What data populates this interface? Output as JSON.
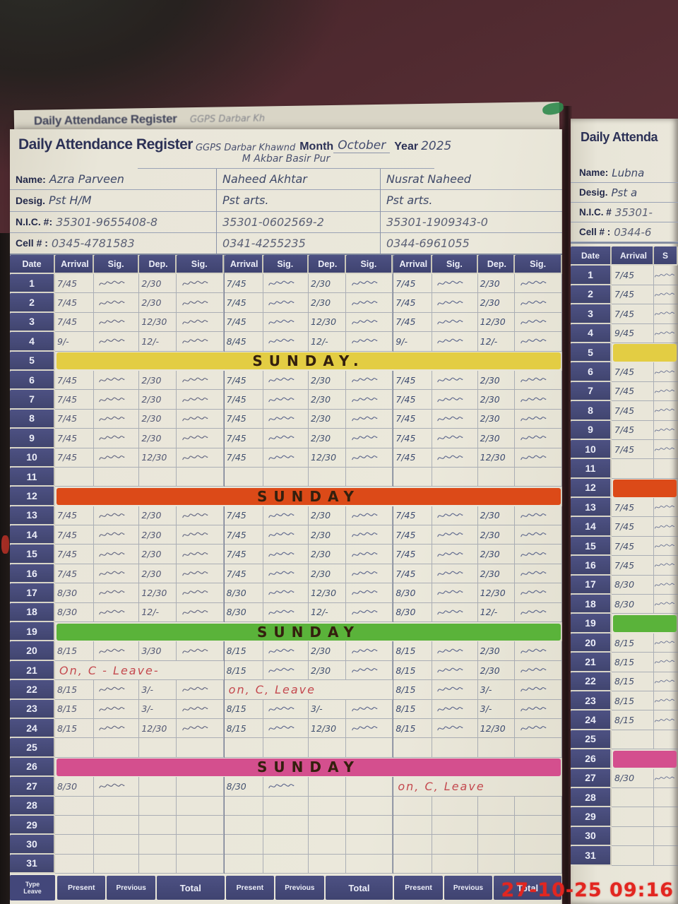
{
  "prev_page": {
    "title": "Daily Attendance Register",
    "handwriting": "GGPS Darbar Kh"
  },
  "page": {
    "title": "Daily Attendance Register",
    "school_line1": "GGPS Darbar Khawnd",
    "school_line2": "M Akbar Basir Pur",
    "month_label": "Month",
    "month_value": "October",
    "year_label": "Year",
    "year_value": "2025",
    "info_labels": {
      "name": "Name:",
      "desig": "Desig.",
      "nic": "N.I.C. #:",
      "cell": "Cell # :"
    },
    "teachers": [
      {
        "name": "Azra Parveen",
        "desig": "Pst  H/M",
        "nic": "35301-9655408-8",
        "cell": "0345-4781583"
      },
      {
        "name": "Naheed Akhtar",
        "desig": "Pst  arts.",
        "nic": "35301-0602569-2",
        "cell": "0341-4255235"
      },
      {
        "name": "Nusrat Naheed",
        "desig": "Pst  arts.",
        "nic": "35301-1909343-0",
        "cell": "0344-6961055"
      }
    ],
    "table_headers": {
      "date": "Date",
      "arrival": "Arrival",
      "sig": "Sig.",
      "dep": "Dep."
    },
    "footer": {
      "type_line1": "Type",
      "type_line2": "Leave",
      "present": "Present",
      "previous": "Previous",
      "total": "Total"
    },
    "sunday_colors": {
      "yellow": "#e3cd43",
      "red": "#dc4a18",
      "green": "#5ab33a",
      "pink": "#d44f8e"
    },
    "rows": [
      {
        "d": 1,
        "t": [
          [
            "7/45",
            "2/30"
          ],
          [
            "7/45",
            "2/30"
          ],
          [
            "7/45",
            "2/30"
          ]
        ]
      },
      {
        "d": 2,
        "t": [
          [
            "7/45",
            "2/30"
          ],
          [
            "7/45",
            "2/30"
          ],
          [
            "7/45",
            "2/30"
          ]
        ]
      },
      {
        "d": 3,
        "t": [
          [
            "7/45",
            "12/30"
          ],
          [
            "7/45",
            "12/30"
          ],
          [
            "7/45",
            "12/30"
          ]
        ]
      },
      {
        "d": 4,
        "t": [
          [
            "9/-",
            "12/-"
          ],
          [
            "8/45",
            "12/-"
          ],
          [
            "9/-",
            "12/-"
          ]
        ]
      },
      {
        "d": 5,
        "sunday": "yellow",
        "label": "SUNDAY."
      },
      {
        "d": 6,
        "t": [
          [
            "7/45",
            "2/30"
          ],
          [
            "7/45",
            "2/30"
          ],
          [
            "7/45",
            "2/30"
          ]
        ]
      },
      {
        "d": 7,
        "t": [
          [
            "7/45",
            "2/30"
          ],
          [
            "7/45",
            "2/30"
          ],
          [
            "7/45",
            "2/30"
          ]
        ]
      },
      {
        "d": 8,
        "t": [
          [
            "7/45",
            "2/30"
          ],
          [
            "7/45",
            "2/30"
          ],
          [
            "7/45",
            "2/30"
          ]
        ]
      },
      {
        "d": 9,
        "t": [
          [
            "7/45",
            "2/30"
          ],
          [
            "7/45",
            "2/30"
          ],
          [
            "7/45",
            "2/30"
          ]
        ]
      },
      {
        "d": 10,
        "t": [
          [
            "7/45",
            "12/30"
          ],
          [
            "7/45",
            "12/30"
          ],
          [
            "7/45",
            "12/30"
          ]
        ]
      },
      {
        "d": 11
      },
      {
        "d": 12,
        "sunday": "red",
        "label": "SUNDAY"
      },
      {
        "d": 13,
        "t": [
          [
            "7/45",
            "2/30"
          ],
          [
            "7/45",
            "2/30"
          ],
          [
            "7/45",
            "2/30"
          ]
        ]
      },
      {
        "d": 14,
        "t": [
          [
            "7/45",
            "2/30"
          ],
          [
            "7/45",
            "2/30"
          ],
          [
            "7/45",
            "2/30"
          ]
        ]
      },
      {
        "d": 15,
        "t": [
          [
            "7/45",
            "2/30"
          ],
          [
            "7/45",
            "2/30"
          ],
          [
            "7/45",
            "2/30"
          ]
        ]
      },
      {
        "d": 16,
        "t": [
          [
            "7/45",
            "2/30"
          ],
          [
            "7/45",
            "2/30"
          ],
          [
            "7/45",
            "2/30"
          ]
        ]
      },
      {
        "d": 17,
        "t": [
          [
            "8/30",
            "12/30"
          ],
          [
            "8/30",
            "12/30"
          ],
          [
            "8/30",
            "12/30"
          ]
        ]
      },
      {
        "d": 18,
        "t": [
          [
            "8/30",
            "12/-"
          ],
          [
            "8/30",
            "12/-"
          ],
          [
            "8/30",
            "12/-"
          ]
        ]
      },
      {
        "d": 19,
        "sunday": "green",
        "label": "SUNDAY"
      },
      {
        "d": 20,
        "t": [
          [
            "8/15",
            "3/30"
          ],
          [
            "8/15",
            "2/30"
          ],
          [
            "8/15",
            "2/30"
          ]
        ]
      },
      {
        "d": 21,
        "t": [
          {
            "leave": "On, C - Leave-"
          },
          [
            "8/15",
            "2/30"
          ],
          [
            "8/15",
            "2/30"
          ]
        ]
      },
      {
        "d": 22,
        "t": [
          [
            "8/15",
            "3/-"
          ],
          {
            "leave": "on, C, Leave"
          },
          [
            "8/15",
            "3/-"
          ]
        ]
      },
      {
        "d": 23,
        "t": [
          [
            "8/15",
            "3/-"
          ],
          [
            "8/15",
            "3/-"
          ],
          [
            "8/15",
            "3/-"
          ]
        ]
      },
      {
        "d": 24,
        "t": [
          [
            "8/15",
            "12/30"
          ],
          [
            "8/15",
            "12/30"
          ],
          [
            "8/15",
            "12/30"
          ]
        ]
      },
      {
        "d": 25
      },
      {
        "d": 26,
        "sunday": "pink",
        "label": "SUNDAY"
      },
      {
        "d": 27,
        "t": [
          [
            "8/30",
            ""
          ],
          [
            "8/30",
            ""
          ],
          {
            "leave": "on, C, Leave"
          }
        ]
      },
      {
        "d": 28
      },
      {
        "d": 29
      },
      {
        "d": 30
      },
      {
        "d": 31
      }
    ]
  },
  "right_page": {
    "title": "Daily Attenda",
    "info_labels": {
      "name": "Name:",
      "desig": "Desig.",
      "nic": "N.I.C. #",
      "cell": "Cell # :"
    },
    "teacher": {
      "name": "Lubna",
      "desig": "Pst  a",
      "nic": "35301-",
      "cell": "0344-6"
    },
    "table_headers": {
      "date": "Date",
      "arrival": "Arrival",
      "sig": "S"
    },
    "rows": [
      {
        "d": 1,
        "a": "7/45"
      },
      {
        "d": 2,
        "a": "7/45"
      },
      {
        "d": 3,
        "a": "7/45"
      },
      {
        "d": 4,
        "a": "9/45"
      },
      {
        "d": 5,
        "sunday": "yellow"
      },
      {
        "d": 6,
        "a": "7/45"
      },
      {
        "d": 7,
        "a": "7/45"
      },
      {
        "d": 8,
        "a": "7/45"
      },
      {
        "d": 9,
        "a": "7/45"
      },
      {
        "d": 10,
        "a": "7/45"
      },
      {
        "d": 11
      },
      {
        "d": 12,
        "sunday": "red"
      },
      {
        "d": 13,
        "a": "7/45"
      },
      {
        "d": 14,
        "a": "7/45"
      },
      {
        "d": 15,
        "a": "7/45"
      },
      {
        "d": 16,
        "a": "7/45"
      },
      {
        "d": 17,
        "a": "8/30"
      },
      {
        "d": 18,
        "a": "8/30"
      },
      {
        "d": 19,
        "sunday": "green"
      },
      {
        "d": 20,
        "a": "8/15"
      },
      {
        "d": 21,
        "a": "8/15"
      },
      {
        "d": 22,
        "a": "8/15"
      },
      {
        "d": 23,
        "a": "8/15"
      },
      {
        "d": 24,
        "a": "8/15"
      },
      {
        "d": 25
      },
      {
        "d": 26,
        "sunday": "pink"
      },
      {
        "d": 27,
        "a": "8/30"
      },
      {
        "d": 28
      },
      {
        "d": 29
      },
      {
        "d": 30
      },
      {
        "d": 31
      }
    ]
  },
  "timestamp": "27-10-25  09:16"
}
